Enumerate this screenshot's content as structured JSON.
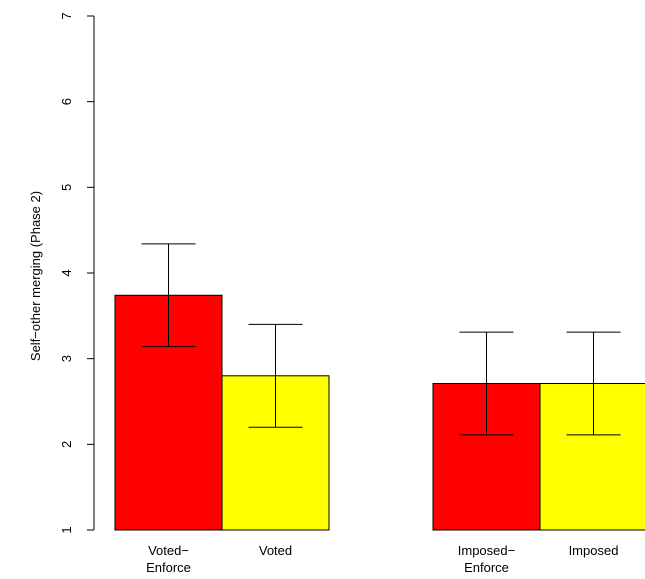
{
  "chart_data": {
    "type": "bar",
    "ylabel": "Self−other merging (Phase 2)",
    "ylim": [
      1,
      7
    ],
    "yticks": [
      "1",
      "2",
      "3",
      "4",
      "5",
      "6",
      "7"
    ],
    "grid": false,
    "groups": [
      {
        "bars": [
          {
            "label": "Voted−\nEnforce",
            "value": 3.74,
            "err_low": 3.14,
            "err_high": 4.34,
            "color": "#ff0000"
          },
          {
            "label": "Voted",
            "value": 2.8,
            "err_low": 2.2,
            "err_high": 3.4,
            "color": "#ffff00"
          }
        ]
      },
      {
        "bars": [
          {
            "label": "Imposed−\nEnforce",
            "value": 2.71,
            "err_low": 2.11,
            "err_high": 3.31,
            "color": "#ff0000"
          },
          {
            "label": "Imposed",
            "value": 2.71,
            "err_low": 2.11,
            "err_high": 3.31,
            "color": "#ffff00"
          }
        ]
      }
    ]
  }
}
